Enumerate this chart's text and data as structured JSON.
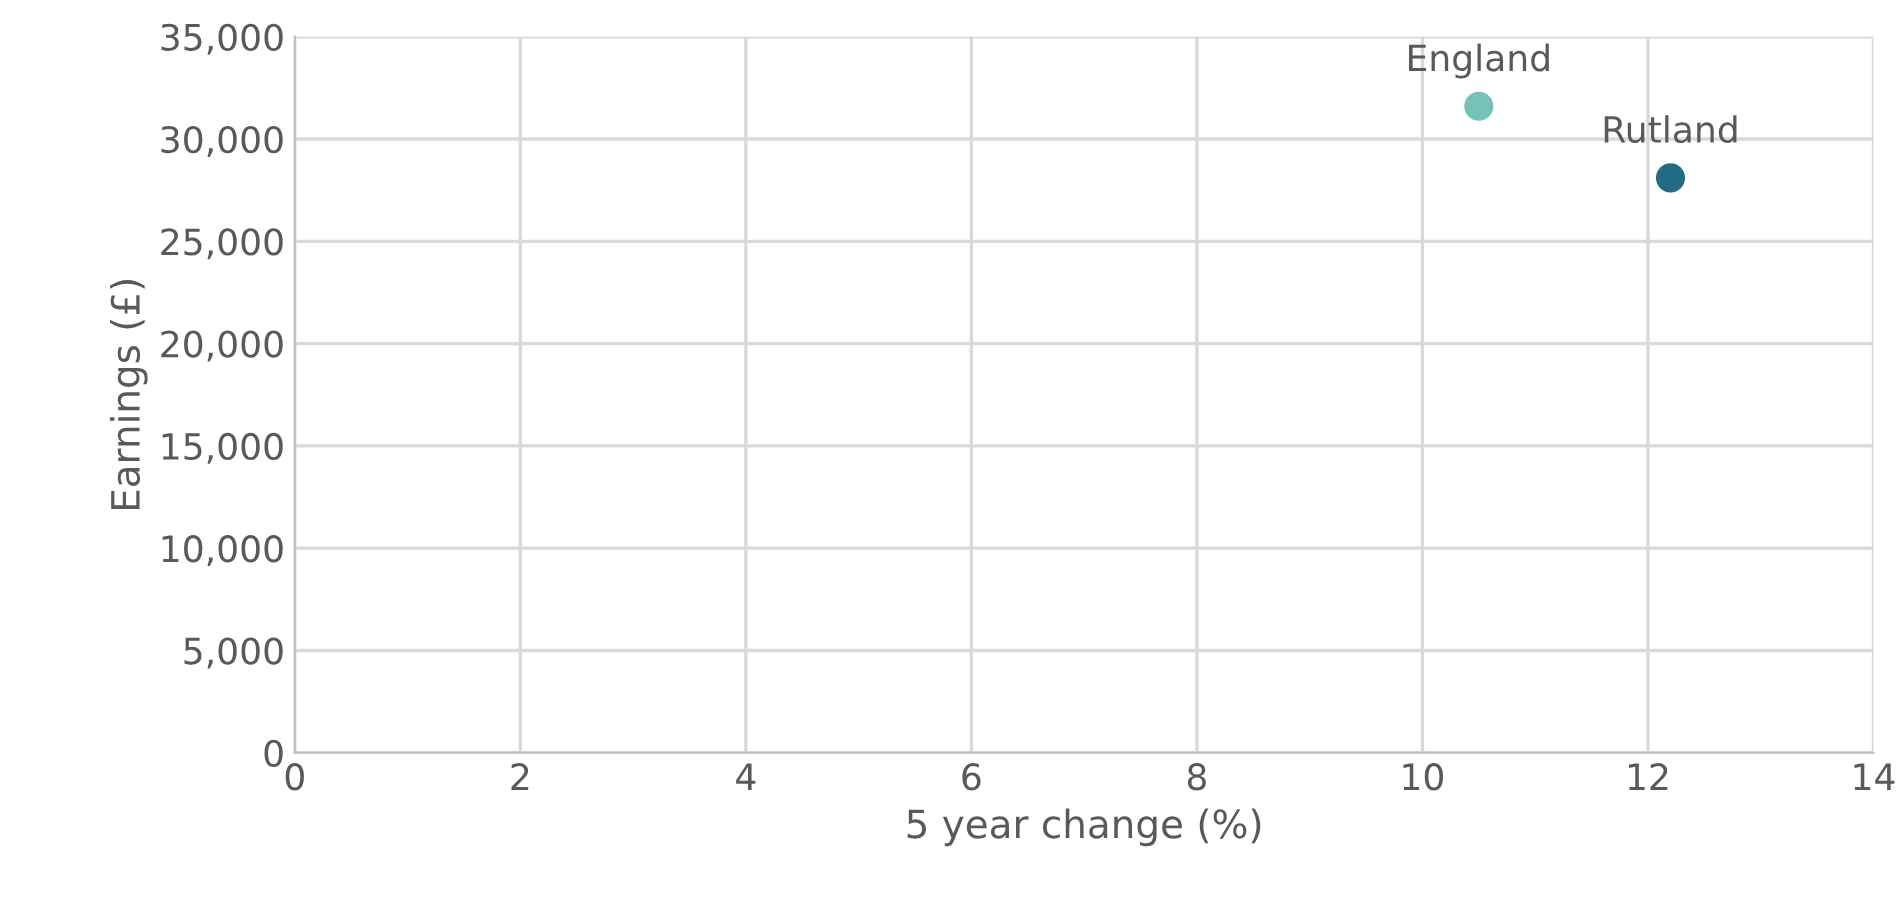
{
  "chart_data": {
    "type": "scatter",
    "xlabel": "5 year change (%)",
    "ylabel": "Earnings (£)",
    "series": [
      {
        "name": "England",
        "color": "#76c1b9",
        "x": [
          10.5
        ],
        "values": [
          31600
        ]
      },
      {
        "name": "Rutland",
        "color": "#236b85",
        "x": [
          12.2
        ],
        "values": [
          28100
        ]
      }
    ],
    "xlim": [
      0,
      14
    ],
    "xticks": [
      0,
      2,
      4,
      6,
      8,
      10,
      12,
      14
    ],
    "ylim": [
      0,
      35000
    ],
    "yticks": [
      {
        "value": 0,
        "label": "0"
      },
      {
        "value": 5000,
        "label": "5,000"
      },
      {
        "value": 10000,
        "label": "10,000"
      },
      {
        "value": 15000,
        "label": "15,000"
      },
      {
        "value": 20000,
        "label": "20,000"
      },
      {
        "value": 25000,
        "label": "25,000"
      },
      {
        "value": 30000,
        "label": "30,000"
      },
      {
        "value": 35000,
        "label": "35,000"
      }
    ],
    "grid": true,
    "legend": false,
    "marker": "circle"
  }
}
